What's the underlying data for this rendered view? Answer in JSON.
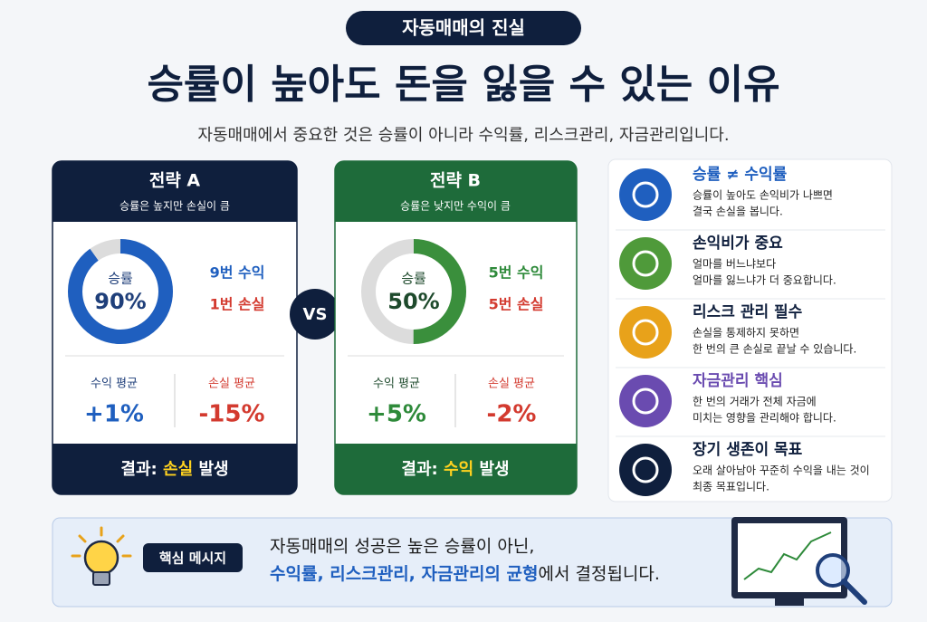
{
  "header": {
    "badge": "자동매매의 진실",
    "title": "승률이 높아도 돈을 잃을 수 있는 이유",
    "subtitle": "자동매매에서 중요한 것은 승률이 아니라 수익률, 리스크관리, 자금관리입니다."
  },
  "strategies": [
    {
      "name": "전략 A",
      "desc": "승률은 높지만 손실이 큼",
      "rate_caption": "승률",
      "rate": 90,
      "rate_label": "90%",
      "wins": "9번 수익",
      "losses": "1번 손실",
      "avg_profit_caption": "수익 평균",
      "avg_profit": "+1%",
      "avg_loss_caption": "손실 평균",
      "avg_loss": "-15%",
      "result_prefix": "결과:",
      "result_word": "손실",
      "result_suffix": "발생"
    },
    {
      "name": "전략 B",
      "desc": "승률은 낮지만 수익이 큼",
      "rate_caption": "승률",
      "rate": 50,
      "rate_label": "50%",
      "wins": "5번 수익",
      "losses": "5번 손실",
      "avg_profit_caption": "수익 평균",
      "avg_profit": "+5%",
      "avg_loss_caption": "손실 평균",
      "avg_loss": "-2%",
      "result_prefix": "결과:",
      "result_word": "수익",
      "result_suffix": "발생"
    }
  ],
  "versus": "VS",
  "points": [
    {
      "title": "승률 ≠ 수익률",
      "lines": [
        "승률이 높아도 손익비가 나쁘면",
        "결국 손실을 봅니다."
      ]
    },
    {
      "title": "손익비가 중요",
      "lines": [
        "얼마를 버느냐보다",
        "얼마를 잃느냐가 더 중요합니다."
      ]
    },
    {
      "title": "리스크 관리 필수",
      "lines": [
        "손실을 통제하지 못하면",
        "한 번의 큰 손실로 끝날 수 있습니다."
      ]
    },
    {
      "title": "자금관리 핵심",
      "lines": [
        "한 번의 거래가 전체 자금에",
        "미치는 영향을 관리해야 합니다."
      ]
    },
    {
      "title": "장기 생존이 목표",
      "lines": [
        "오래 살아남아 꾸준히 수익을 내는 것이",
        "최종 목표입니다."
      ]
    }
  ],
  "message": {
    "label": "핵심 메시지",
    "line1": "자동매매의 성공은 높은 승률이 아닌,",
    "line2_emphasis": "수익률, 리스크관리, 자금관리의 균형",
    "line2_rest": "에서 결정됩니다."
  }
}
